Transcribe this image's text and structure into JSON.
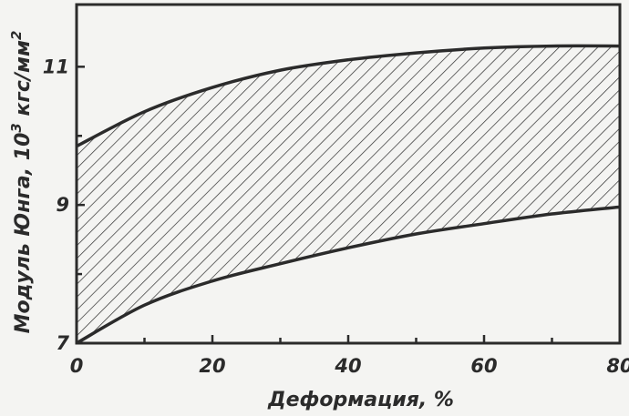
{
  "chart_data": {
    "type": "area",
    "title": "",
    "xlabel": "Деформация, %",
    "ylabel": {
      "prefix": "Модуль Юнга, 10",
      "sup1": "3",
      "mid": " кгс/мм",
      "sup2": "2"
    },
    "xlim": [
      0,
      80
    ],
    "ylim": [
      7,
      12
    ],
    "xticks_labeled": [
      "0",
      "20",
      "40",
      "60",
      "80"
    ],
    "yticks_labeled": [
      "7",
      "9",
      "11"
    ],
    "xticks_minor": [
      10,
      30,
      50,
      70
    ],
    "yticks_minor": [
      8,
      10
    ],
    "grid": false,
    "band": {
      "upper": {
        "x": [
          0,
          10,
          20,
          30,
          40,
          50,
          60,
          70,
          80
        ],
        "y": [
          9.85,
          10.35,
          10.7,
          10.95,
          11.1,
          11.2,
          11.27,
          11.3,
          11.3
        ]
      },
      "lower": {
        "x": [
          0,
          10,
          20,
          30,
          40,
          50,
          60,
          70,
          80
        ],
        "y": [
          7.0,
          7.55,
          7.9,
          8.15,
          8.38,
          8.58,
          8.73,
          8.87,
          8.97
        ]
      },
      "fill": "hatched",
      "color": "#2b2b2b"
    }
  }
}
